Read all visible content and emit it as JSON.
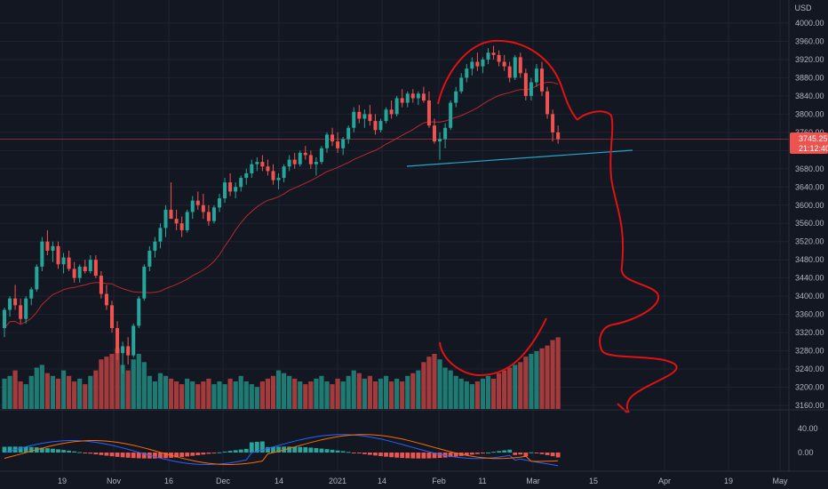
{
  "chart_data": {
    "type": "candlestick",
    "currency": "USD",
    "colors": {
      "background": "#131722",
      "up": "#26a69a",
      "down": "#ef5350",
      "volume_up": "#1e7a72",
      "volume_down": "#a33a3c",
      "moving_average": "#b7292e",
      "trendline": "#26a5c9",
      "annotation": "#e01212",
      "macd_line": "#2962ff",
      "signal_line": "#ff6d00",
      "price_line": "#ef5350",
      "grid": "#1f2330",
      "axis_text": "#b2b5be"
    },
    "y_axis": {
      "ticks": [
        "4000.00",
        "3960.00",
        "3920.00",
        "3880.00",
        "3840.00",
        "3800.00",
        "3760.00",
        "3720.00",
        "3680.00",
        "3640.00",
        "3600.00",
        "3560.00",
        "3520.00",
        "3480.00",
        "3440.00",
        "3400.00",
        "3360.00",
        "3320.00",
        "3280.00",
        "3240.00",
        "3200.00",
        "3160.00"
      ],
      "range": [
        3160,
        4040
      ]
    },
    "x_axis": {
      "labels": [
        "19",
        "Nov",
        "16",
        "Dec",
        "14",
        "2021",
        "14",
        "Feb",
        "11",
        "Mar",
        "15",
        "Apr",
        "19",
        "May"
      ]
    },
    "current_price": {
      "value": "3745.25",
      "countdown": "21:12:40"
    },
    "indicator_axis": {
      "ticks": [
        "40.00",
        "0.00"
      ],
      "range": [
        -30,
        60
      ]
    },
    "candles": [
      [
        3330,
        3375,
        3310,
        3370
      ],
      [
        3370,
        3400,
        3355,
        3395
      ],
      [
        3395,
        3425,
        3370,
        3380
      ],
      [
        3380,
        3395,
        3340,
        3350
      ],
      [
        3350,
        3400,
        3340,
        3395
      ],
      [
        3395,
        3420,
        3380,
        3415
      ],
      [
        3415,
        3470,
        3410,
        3465
      ],
      [
        3465,
        3530,
        3455,
        3520
      ],
      [
        3520,
        3545,
        3490,
        3500
      ],
      [
        3500,
        3520,
        3475,
        3510
      ],
      [
        3510,
        3520,
        3460,
        3470
      ],
      [
        3470,
        3495,
        3450,
        3485
      ],
      [
        3485,
        3500,
        3455,
        3460
      ],
      [
        3460,
        3475,
        3430,
        3440
      ],
      [
        3440,
        3470,
        3430,
        3465
      ],
      [
        3465,
        3480,
        3450,
        3455
      ],
      [
        3455,
        3490,
        3450,
        3480
      ],
      [
        3480,
        3490,
        3440,
        3445
      ],
      [
        3445,
        3455,
        3395,
        3405
      ],
      [
        3405,
        3425,
        3370,
        3380
      ],
      [
        3380,
        3390,
        3320,
        3330
      ],
      [
        3330,
        3345,
        3260,
        3275
      ],
      [
        3275,
        3300,
        3230,
        3290
      ],
      [
        3290,
        3310,
        3250,
        3270
      ],
      [
        3270,
        3340,
        3265,
        3335
      ],
      [
        3335,
        3400,
        3330,
        3395
      ],
      [
        3395,
        3470,
        3390,
        3465
      ],
      [
        3465,
        3510,
        3455,
        3500
      ],
      [
        3500,
        3530,
        3485,
        3520
      ],
      [
        3520,
        3560,
        3505,
        3550
      ],
      [
        3550,
        3600,
        3530,
        3590
      ],
      [
        3590,
        3650,
        3575,
        3570
      ],
      [
        3570,
        3590,
        3545,
        3560
      ],
      [
        3560,
        3575,
        3530,
        3545
      ],
      [
        3545,
        3590,
        3540,
        3585
      ],
      [
        3585,
        3620,
        3570,
        3610
      ],
      [
        3610,
        3630,
        3590,
        3600
      ],
      [
        3600,
        3625,
        3570,
        3585
      ],
      [
        3585,
        3600,
        3555,
        3565
      ],
      [
        3565,
        3600,
        3560,
        3595
      ],
      [
        3595,
        3625,
        3585,
        3615
      ],
      [
        3615,
        3660,
        3605,
        3650
      ],
      [
        3650,
        3670,
        3620,
        3630
      ],
      [
        3630,
        3650,
        3615,
        3640
      ],
      [
        3640,
        3665,
        3630,
        3660
      ],
      [
        3660,
        3680,
        3645,
        3670
      ],
      [
        3670,
        3700,
        3660,
        3690
      ],
      [
        3690,
        3705,
        3675,
        3695
      ],
      [
        3695,
        3710,
        3675,
        3685
      ],
      [
        3685,
        3700,
        3665,
        3675
      ],
      [
        3675,
        3690,
        3645,
        3655
      ],
      [
        3655,
        3670,
        3635,
        3660
      ],
      [
        3660,
        3690,
        3650,
        3685
      ],
      [
        3685,
        3710,
        3675,
        3700
      ],
      [
        3700,
        3715,
        3680,
        3690
      ],
      [
        3690,
        3720,
        3685,
        3715
      ],
      [
        3715,
        3730,
        3700,
        3710
      ],
      [
        3710,
        3720,
        3680,
        3690
      ],
      [
        3690,
        3705,
        3665,
        3695
      ],
      [
        3695,
        3730,
        3690,
        3725
      ],
      [
        3725,
        3760,
        3715,
        3755
      ],
      [
        3755,
        3770,
        3730,
        3740
      ],
      [
        3740,
        3760,
        3715,
        3725
      ],
      [
        3725,
        3750,
        3710,
        3745
      ],
      [
        3745,
        3775,
        3735,
        3770
      ],
      [
        3770,
        3815,
        3760,
        3805
      ],
      [
        3805,
        3820,
        3780,
        3790
      ],
      [
        3790,
        3810,
        3770,
        3800
      ],
      [
        3800,
        3820,
        3775,
        3785
      ],
      [
        3785,
        3800,
        3755,
        3765
      ],
      [
        3765,
        3790,
        3760,
        3785
      ],
      [
        3785,
        3815,
        3780,
        3810
      ],
      [
        3810,
        3830,
        3790,
        3800
      ],
      [
        3800,
        3840,
        3795,
        3835
      ],
      [
        3835,
        3855,
        3815,
        3825
      ],
      [
        3825,
        3850,
        3815,
        3845
      ],
      [
        3845,
        3855,
        3825,
        3835
      ],
      [
        3835,
        3850,
        3820,
        3845
      ],
      [
        3845,
        3860,
        3825,
        3830
      ],
      [
        3830,
        3850,
        3770,
        3775
      ],
      [
        3775,
        3790,
        3735,
        3740
      ],
      [
        3740,
        3760,
        3700,
        3745
      ],
      [
        3745,
        3780,
        3725,
        3770
      ],
      [
        3770,
        3830,
        3765,
        3825
      ],
      [
        3825,
        3860,
        3815,
        3850
      ],
      [
        3850,
        3890,
        3845,
        3880
      ],
      [
        3880,
        3910,
        3870,
        3900
      ],
      [
        3900,
        3925,
        3885,
        3915
      ],
      [
        3915,
        3935,
        3895,
        3905
      ],
      [
        3905,
        3925,
        3890,
        3920
      ],
      [
        3920,
        3945,
        3910,
        3935
      ],
      [
        3935,
        3950,
        3920,
        3930
      ],
      [
        3930,
        3940,
        3905,
        3915
      ],
      [
        3915,
        3930,
        3895,
        3905
      ],
      [
        3905,
        3915,
        3870,
        3880
      ],
      [
        3880,
        3930,
        3875,
        3925
      ],
      [
        3925,
        3935,
        3880,
        3890
      ],
      [
        3890,
        3900,
        3830,
        3840
      ],
      [
        3840,
        3880,
        3830,
        3870
      ],
      [
        3870,
        3910,
        3860,
        3900
      ],
      [
        3900,
        3915,
        3840,
        3850
      ],
      [
        3850,
        3860,
        3790,
        3800
      ],
      [
        3800,
        3810,
        3740,
        3760
      ],
      [
        3760,
        3775,
        3735,
        3745
      ]
    ],
    "volume_ratio": [
      0.55,
      0.6,
      0.7,
      0.5,
      0.45,
      0.6,
      0.75,
      0.8,
      0.65,
      0.6,
      0.55,
      0.7,
      0.6,
      0.5,
      0.55,
      0.45,
      0.6,
      0.7,
      0.9,
      0.95,
      1.0,
      1.1,
      0.8,
      0.7,
      0.9,
      1.0,
      0.85,
      0.6,
      0.5,
      0.65,
      0.6,
      0.55,
      0.5,
      0.45,
      0.55,
      0.5,
      0.45,
      0.5,
      0.55,
      0.45,
      0.5,
      0.45,
      0.55,
      0.5,
      0.6,
      0.5,
      0.45,
      0.4,
      0.5,
      0.55,
      0.6,
      0.7,
      0.65,
      0.6,
      0.55,
      0.5,
      0.45,
      0.5,
      0.55,
      0.6,
      0.5,
      0.45,
      0.55,
      0.5,
      0.6,
      0.7,
      0.65,
      0.55,
      0.6,
      0.5,
      0.55,
      0.6,
      0.5,
      0.55,
      0.5,
      0.6,
      0.65,
      0.7,
      0.85,
      0.95,
      1.0,
      0.9,
      0.75,
      0.7,
      0.6,
      0.55,
      0.5,
      0.45,
      0.5,
      0.55,
      0.6,
      0.55,
      0.65,
      0.7,
      0.75,
      0.8,
      0.85,
      0.95,
      1.0,
      1.05,
      1.1,
      1.15,
      1.25,
      1.3
    ]
  }
}
